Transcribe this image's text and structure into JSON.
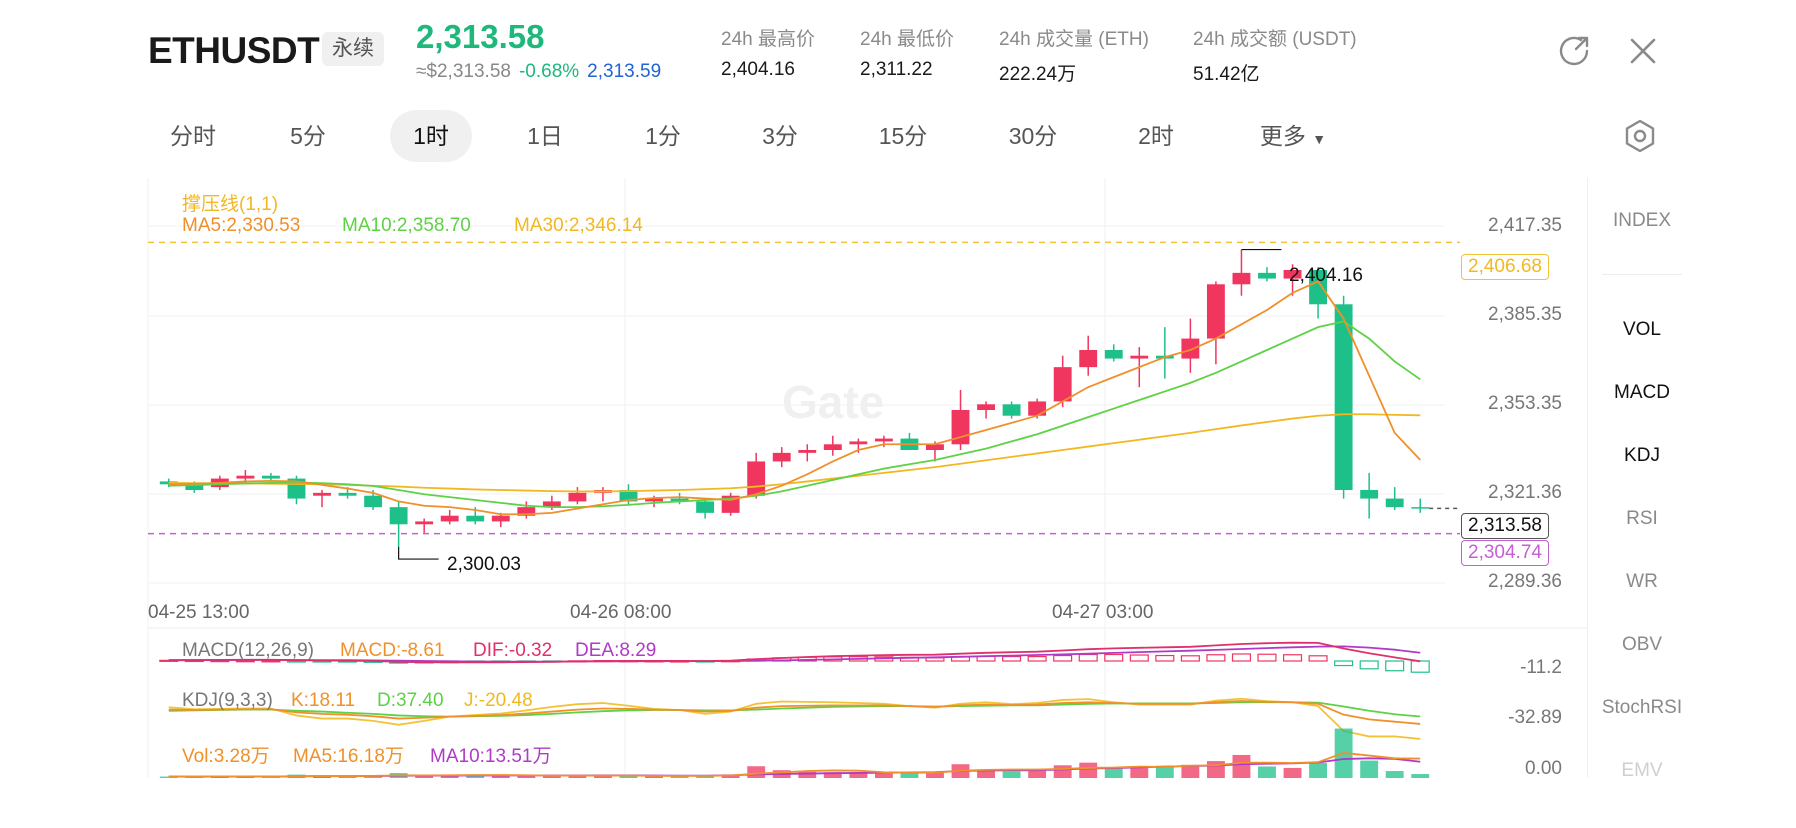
{
  "header": {
    "symbol": "ETHUSDT",
    "contract_type": "永续",
    "last_price": "2,313.58",
    "usd_price": "≈$2,313.58",
    "change_pct": "-0.68%",
    "mark_price": "2,313.59",
    "stats": [
      {
        "label": "24h 最高价",
        "value": "2,404.16"
      },
      {
        "label": "24h 最低价",
        "value": "2,311.22"
      },
      {
        "label": "24h 成交量 (ETH)",
        "value": "222.24万"
      },
      {
        "label": "24h 成交额 (USDT)",
        "value": "51.42亿"
      }
    ],
    "icons": {
      "share": "share-icon",
      "close": "close-icon"
    }
  },
  "tabs": [
    {
      "label": "分时",
      "active": false
    },
    {
      "label": "5分",
      "active": false
    },
    {
      "label": "1时",
      "active": true
    },
    {
      "label": "1日",
      "active": false
    },
    {
      "label": "1分",
      "active": false
    },
    {
      "label": "3分",
      "active": false
    },
    {
      "label": "15分",
      "active": false
    },
    {
      "label": "30分",
      "active": false
    },
    {
      "label": "2时",
      "active": false
    },
    {
      "label": "更多",
      "active": false
    }
  ],
  "indicators_panel": [
    "INDEX",
    "VOL",
    "MACD",
    "KDJ",
    "RSI",
    "WR",
    "OBV",
    "StochRSI",
    "EMV"
  ],
  "indicators_active": [
    "VOL",
    "MACD",
    "KDJ"
  ],
  "legend": {
    "sr_line": "撑压线(1,1)",
    "ma5": "MA5:2,330.53",
    "ma10": "MA10:2,358.70",
    "ma30": "MA30:2,346.14",
    "macd_title": "MACD(12,26,9)",
    "macd_val": "MACD:-8.61",
    "dif": "DIF:-0.32",
    "dea": "DEA:8.29",
    "kdj_title": "KDJ(9,3,3)",
    "k": "K:18.11",
    "d": "D:37.40",
    "j": "J:-20.48",
    "vol": "Vol:3.28万",
    "vol_ma5": "MA5:16.18万",
    "vol_ma10": "MA10:13.51万"
  },
  "price_axis": [
    "2,417.35",
    "2,385.35",
    "2,353.35",
    "2,321.36",
    "2,289.36"
  ],
  "time_axis": [
    "04-25 13:00",
    "04-26 08:00",
    "04-27 03:00"
  ],
  "tags": {
    "resistance": "2,406.68",
    "last": "2,313.58",
    "support": "2,304.74"
  },
  "annotations": {
    "high": "2,404.16",
    "low": "2,300.03"
  },
  "sub_axes": {
    "macd": "-11.2",
    "kdj": "-32.89",
    "vol": "0.00"
  },
  "watermark": "Gate",
  "colors": {
    "up": "#f0355f",
    "down": "#1ec08a",
    "ma5": "#f0902a",
    "ma10": "#5ed146",
    "ma30": "#f2b822",
    "resistance": "#f2c237",
    "support": "#c55fd4",
    "dif": "#e0306a",
    "dea": "#b03ac8",
    "price_green": "#1fb87c"
  },
  "chart_data": {
    "type": "candlestick",
    "timeframe": "1时",
    "ohlc": [
      [
        2323,
        2324,
        2321,
        2322
      ],
      [
        2322,
        2323,
        2319,
        2320
      ],
      [
        2321,
        2325,
        2320,
        2324
      ],
      [
        2324,
        2327,
        2322,
        2325
      ],
      [
        2325,
        2326,
        2323,
        2324
      ],
      [
        2324,
        2325,
        2315,
        2317
      ],
      [
        2318,
        2320,
        2314,
        2319
      ],
      [
        2319,
        2321,
        2317,
        2318
      ],
      [
        2318,
        2320,
        2313,
        2314
      ],
      [
        2314,
        2316,
        2300.03,
        2308
      ],
      [
        2308,
        2310,
        2305,
        2309
      ],
      [
        2309,
        2313,
        2308,
        2311
      ],
      [
        2311,
        2314,
        2308,
        2309
      ],
      [
        2309,
        2312,
        2307,
        2311
      ],
      [
        2311,
        2316,
        2310,
        2314
      ],
      [
        2314,
        2318,
        2313,
        2316
      ],
      [
        2316,
        2321,
        2315,
        2319
      ],
      [
        2319,
        2321,
        2316,
        2320
      ],
      [
        2320,
        2322,
        2315,
        2316
      ],
      [
        2316,
        2318,
        2314,
        2317
      ],
      [
        2317,
        2319,
        2315,
        2316
      ],
      [
        2316,
        2317,
        2310,
        2312
      ],
      [
        2312,
        2319,
        2311,
        2318
      ],
      [
        2318,
        2333,
        2317,
        2330
      ],
      [
        2330,
        2335,
        2328,
        2333
      ],
      [
        2333,
        2336,
        2330,
        2334
      ],
      [
        2334,
        2339,
        2332,
        2336
      ],
      [
        2336,
        2338,
        2333,
        2337
      ],
      [
        2337,
        2339,
        2335,
        2338
      ],
      [
        2338,
        2340,
        2334,
        2334
      ],
      [
        2334,
        2337,
        2330,
        2336
      ],
      [
        2336,
        2355,
        2334,
        2348
      ],
      [
        2348,
        2351,
        2345,
        2350
      ],
      [
        2350,
        2351,
        2345,
        2346
      ],
      [
        2346,
        2352,
        2345,
        2351
      ],
      [
        2351,
        2367,
        2349,
        2363
      ],
      [
        2363,
        2374,
        2360,
        2369
      ],
      [
        2369,
        2371,
        2365,
        2366
      ],
      [
        2366,
        2370,
        2356,
        2367
      ],
      [
        2367,
        2377,
        2359,
        2366
      ],
      [
        2366,
        2380,
        2361,
        2373
      ],
      [
        2373,
        2393,
        2364,
        2392
      ],
      [
        2392,
        2404.16,
        2388,
        2396
      ],
      [
        2396,
        2398,
        2393,
        2394
      ],
      [
        2394,
        2399,
        2388,
        2397
      ],
      [
        2397,
        2398,
        2380,
        2385
      ],
      [
        2385,
        2388,
        2317,
        2320
      ],
      [
        2320,
        2326,
        2310,
        2317
      ],
      [
        2317,
        2321,
        2313,
        2314
      ],
      [
        2314,
        2317,
        2312,
        2313.58
      ]
    ],
    "ma5": [
      2322,
      2322.2,
      2322.5,
      2323,
      2323.2,
      2323,
      2321.8,
      2320.5,
      2319,
      2316,
      2314.5,
      2314,
      2313,
      2311.5,
      2311.5,
      2312,
      2313.5,
      2315,
      2316.5,
      2317.2,
      2317.5,
      2317,
      2316.5,
      2318.5,
      2321.5,
      2325.5,
      2330,
      2334,
      2336,
      2336,
      2336,
      2338.5,
      2341,
      2343.5,
      2346,
      2351,
      2356,
      2359.5,
      2363,
      2366.5,
      2369,
      2373,
      2378,
      2383,
      2389,
      2393,
      2380,
      2360,
      2340,
      2330.53
    ],
    "ma10": [
      2321.5,
      2321.7,
      2322,
      2322.3,
      2322.5,
      2322.6,
      2322.4,
      2322,
      2321.4,
      2320,
      2318.5,
      2317.5,
      2316.5,
      2315.5,
      2314.5,
      2314,
      2314,
      2314.3,
      2314.8,
      2315.5,
      2316,
      2316.5,
      2317,
      2318,
      2319.5,
      2321.5,
      2323.5,
      2325.5,
      2327.5,
      2329,
      2330.5,
      2332.5,
      2334.5,
      2337,
      2339.5,
      2342.5,
      2345.5,
      2348.5,
      2351.5,
      2354.5,
      2357.5,
      2361,
      2365,
      2369,
      2373,
      2377,
      2379,
      2373,
      2365,
      2358.7
    ],
    "ma30": [
      2322.5,
      2322.4,
      2322.3,
      2322.3,
      2322.2,
      2322.1,
      2322,
      2321.8,
      2321.5,
      2321.2,
      2320.8,
      2320.5,
      2320.2,
      2320,
      2319.8,
      2319.6,
      2319.5,
      2319.5,
      2319.6,
      2319.8,
      2320,
      2320.3,
      2320.6,
      2321.2,
      2322,
      2323,
      2324,
      2325,
      2326,
      2327,
      2328,
      2329.2,
      2330.4,
      2331.6,
      2332.8,
      2334,
      2335.2,
      2336.4,
      2337.6,
      2338.8,
      2340,
      2341.3,
      2342.6,
      2343.8,
      2345,
      2346,
      2346.5,
      2346.5,
      2346.3,
      2346.14
    ],
    "support_line": 2304.74,
    "resistance_line": 2406.68,
    "last_price": 2313.58,
    "y_range": [
      2285,
      2425
    ],
    "macd_hist": [
      0.5,
      0.4,
      0.3,
      0.2,
      0.1,
      -0.5,
      -0.7,
      -0.8,
      -1.0,
      -1.6,
      -1.5,
      -1.3,
      -1.1,
      -0.9,
      -0.6,
      -0.3,
      0.1,
      0.3,
      0.2,
      0.1,
      0.0,
      -0.2,
      0.2,
      1.5,
      2.4,
      2.9,
      3.2,
      3.3,
      3.2,
      2.8,
      2.4,
      3.2,
      3.6,
      3.4,
      3.4,
      4.2,
      5.0,
      5.0,
      4.6,
      4.2,
      4.0,
      4.8,
      5.4,
      5.2,
      4.8,
      4.0,
      -3.5,
      -6.0,
      -7.5,
      -8.61
    ],
    "macd_dif": [
      1,
      1,
      1.1,
      1.2,
      1.2,
      0.8,
      0.5,
      0.3,
      0.0,
      -0.8,
      -1.2,
      -1.3,
      -1.3,
      -1.3,
      -1.1,
      -0.8,
      -0.4,
      0.0,
      0.1,
      0.1,
      0.1,
      0.0,
      0.3,
      1.8,
      3.0,
      4.0,
      4.8,
      5.4,
      5.9,
      6.2,
      6.3,
      7.3,
      8.2,
      8.8,
      9.3,
      10.5,
      11.8,
      12.6,
      13.2,
      13.7,
      14.2,
      15.6,
      17.0,
      17.8,
      18.3,
      18.1,
      12.5,
      7.8,
      3.6,
      -0.32
    ],
    "macd_dea": [
      0.7,
      0.8,
      0.9,
      1.0,
      1.1,
      1.0,
      0.9,
      0.8,
      0.6,
      0.3,
      0.0,
      -0.3,
      -0.5,
      -0.6,
      -0.6,
      -0.6,
      -0.5,
      -0.4,
      -0.3,
      -0.2,
      -0.1,
      -0.1,
      0.0,
      0.3,
      0.6,
      1.1,
      1.6,
      2.1,
      2.7,
      3.2,
      3.7,
      4.2,
      4.8,
      5.4,
      6.0,
      6.6,
      7.3,
      8.1,
      8.9,
      9.6,
      10.3,
      11.1,
      12.0,
      12.9,
      13.7,
      14.4,
      14.6,
      13.4,
      11.3,
      8.29
    ],
    "kdj_k": [
      55,
      54,
      55,
      56,
      56,
      48,
      44,
      42,
      38,
      32,
      34,
      37,
      39,
      41,
      45,
      50,
      55,
      58,
      57,
      55,
      54,
      50,
      52,
      60,
      64,
      65,
      66,
      66,
      66,
      64,
      62,
      66,
      68,
      67,
      68,
      72,
      74,
      72,
      70,
      70,
      70,
      74,
      77,
      75,
      74,
      70,
      42,
      30,
      24,
      18.11
    ],
    "kdj_d": [
      52,
      53,
      54,
      55,
      55,
      52,
      50,
      47,
      44,
      40,
      38,
      37,
      38,
      39,
      41,
      44,
      48,
      51,
      53,
      54,
      54,
      53,
      53,
      55,
      58,
      60,
      62,
      63,
      64,
      64,
      63,
      64,
      65,
      66,
      66,
      68,
      70,
      71,
      71,
      71,
      71,
      72,
      74,
      74,
      74,
      73,
      63,
      52,
      43,
      37.4
    ],
    "kdj_j": [
      61,
      56,
      57,
      58,
      58,
      40,
      32,
      32,
      26,
      16,
      26,
      37,
      41,
      45,
      53,
      62,
      69,
      72,
      65,
      57,
      54,
      44,
      50,
      70,
      76,
      75,
      74,
      72,
      70,
      64,
      60,
      70,
      74,
      69,
      72,
      80,
      82,
      74,
      68,
      68,
      68,
      78,
      83,
      77,
      74,
      64,
      0,
      -14,
      -14,
      -20.48
    ],
    "volume": [
      1.2,
      1.0,
      1.5,
      1.3,
      1.1,
      2.8,
      1.6,
      1.2,
      1.8,
      4.1,
      2.5,
      1.9,
      2.2,
      1.8,
      2.3,
      2.0,
      1.9,
      1.6,
      2.0,
      1.7,
      1.5,
      2.4,
      3.0,
      9.8,
      6.5,
      5.2,
      4.8,
      4.1,
      3.6,
      4.5,
      5.0,
      11.5,
      7.2,
      5.5,
      6.2,
      10.6,
      12.8,
      8.1,
      9.0,
      10.2,
      11.0,
      14.1,
      19.2,
      9.6,
      8.4,
      12.5,
      41.2,
      14.5,
      5.8,
      3.28
    ],
    "volume_ma5": [
      1.2,
      1.2,
      1.3,
      1.3,
      1.2,
      1.5,
      1.6,
      1.6,
      1.7,
      2.3,
      2.2,
      2.3,
      2.5,
      2.5,
      2.3,
      2.0,
      2.0,
      2.0,
      2.0,
      1.8,
      1.7,
      1.8,
      2.1,
      3.6,
      4.7,
      5.8,
      6.3,
      6.1,
      4.8,
      4.4,
      4.4,
      6.1,
      6.8,
      7.1,
      7.1,
      7.6,
      8.4,
      8.7,
      9.5,
      9.3,
      10.2,
      10.6,
      12.7,
      12.8,
      12.5,
      13.2,
      20.9,
      18.7,
      16.4,
      16.18
    ],
    "volume_ma10": [
      1.2,
      1.1,
      1.2,
      1.3,
      1.2,
      1.4,
      1.5,
      1.5,
      1.6,
      1.9,
      2.0,
      2.0,
      2.1,
      2.1,
      2.2,
      2.1,
      2.1,
      2.2,
      2.2,
      2.1,
      2.0,
      2.0,
      2.2,
      3.0,
      3.4,
      3.7,
      4.0,
      4.2,
      4.4,
      4.6,
      4.8,
      5.9,
      6.3,
      6.4,
      6.5,
      7.1,
      7.9,
      8.3,
      8.9,
      9.5,
      10.0,
      10.3,
      11.5,
      11.9,
      12.2,
      12.9,
      15.8,
      16.4,
      16.0,
      13.51
    ],
    "time_labels": [
      {
        "index": 0,
        "label": "04-25 13:00"
      },
      {
        "index": 19,
        "label": "04-26 08:00"
      },
      {
        "index": 38,
        "label": "04-27 03:00"
      }
    ]
  }
}
